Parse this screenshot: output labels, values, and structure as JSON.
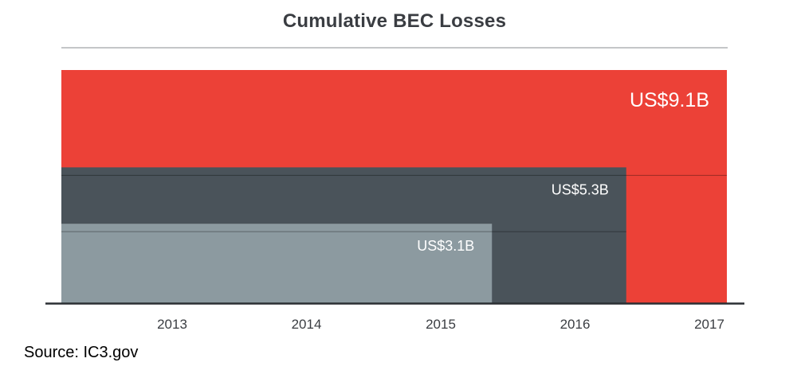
{
  "chart_data": {
    "type": "area",
    "title": "Cumulative BEC Losses",
    "xlabel": "",
    "ylabel": "",
    "categories": [
      "2013",
      "2014",
      "2015",
      "2016",
      "2017"
    ],
    "series": [
      {
        "label": "US$9.1B",
        "value": 9.1,
        "unit": "US$ billion",
        "through": "2017",
        "color": "#ec4137"
      },
      {
        "label": "US$5.3B",
        "value": 5.3,
        "unit": "US$ billion",
        "through": "2016",
        "color": "#4a535a"
      },
      {
        "label": "US$3.1B",
        "value": 3.1,
        "unit": "US$ billion",
        "through": "2015",
        "color": "#8c9aa0"
      }
    ],
    "ylim": [
      0,
      9.1
    ],
    "grid": false,
    "legend": "none"
  },
  "source": "Source: IC3.gov"
}
